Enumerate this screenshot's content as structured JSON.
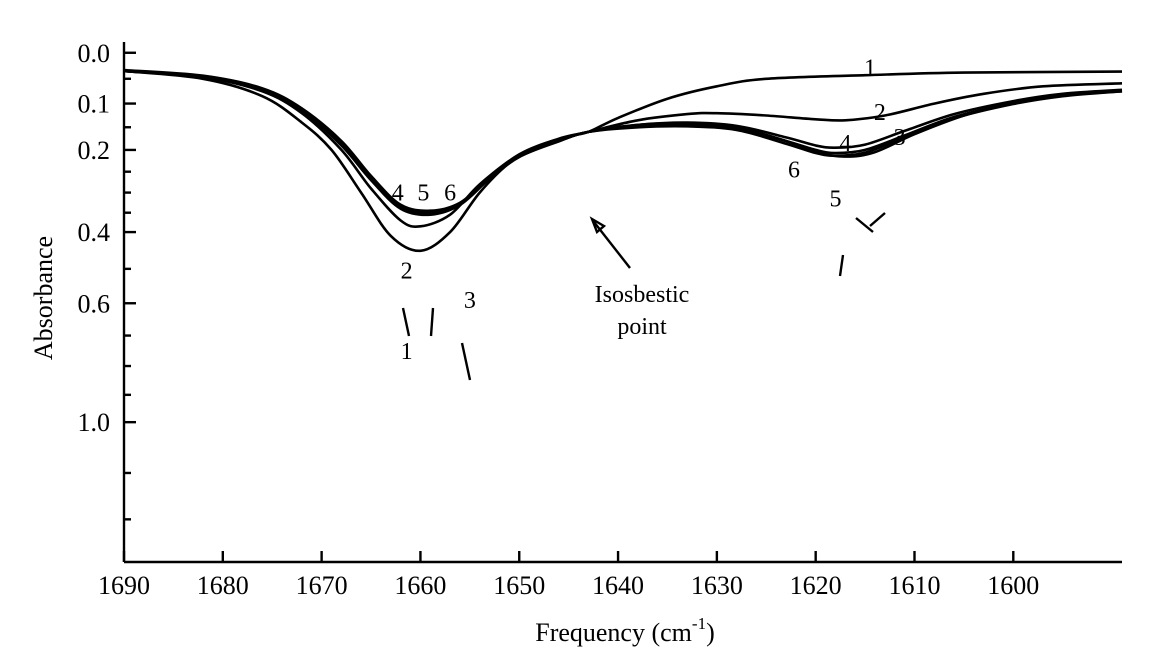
{
  "chart_data": {
    "type": "line",
    "title": "",
    "xlabel": "Frequency (cm",
    "xlabel_sup": "-1",
    "xlabel_close": ")",
    "ylabel": "Absorbance",
    "x_ticks": [
      1690,
      1680,
      1670,
      1660,
      1650,
      1640,
      1630,
      1620,
      1610,
      1600
    ],
    "x_range": [
      1690,
      1589
    ],
    "y_scale": "log10(1 + A)",
    "y_ticks": [
      "0.0",
      "0.1",
      "0.2",
      "0.4",
      "0.6",
      "1.0"
    ],
    "y_tick_values": [
      0.0,
      0.1,
      0.2,
      0.4,
      0.6,
      1.0
    ],
    "y_minor_tick_values": [
      0.05,
      0.15,
      0.25,
      0.3,
      0.35,
      0.5,
      0.7,
      0.8,
      0.9,
      1.2,
      1.4
    ],
    "y_range": [
      -0.02,
      1.6
    ],
    "grid": false,
    "annotation": {
      "text_line1": "Isosbestic",
      "text_line2": "point",
      "x": 1643,
      "y": 0.16
    },
    "series": [
      {
        "name": "1",
        "points": [
          [
            1690,
            0.035
          ],
          [
            1682,
            0.05
          ],
          [
            1676,
            0.085
          ],
          [
            1672,
            0.14
          ],
          [
            1669,
            0.2
          ],
          [
            1666,
            0.3
          ],
          [
            1663,
            0.41
          ],
          [
            1660,
            0.45
          ],
          [
            1657,
            0.4
          ],
          [
            1654,
            0.3
          ],
          [
            1651,
            0.23
          ],
          [
            1648,
            0.195
          ],
          [
            1645,
            0.17
          ],
          [
            1643,
            0.16
          ],
          [
            1640,
            0.13
          ],
          [
            1635,
            0.09
          ],
          [
            1630,
            0.065
          ],
          [
            1625,
            0.05
          ],
          [
            1615,
            0.043
          ],
          [
            1605,
            0.038
          ],
          [
            1589,
            0.036
          ]
        ]
      },
      {
        "name": "2",
        "points": [
          [
            1690,
            0.035
          ],
          [
            1682,
            0.047
          ],
          [
            1676,
            0.075
          ],
          [
            1672,
            0.12
          ],
          [
            1668,
            0.2
          ],
          [
            1665,
            0.29
          ],
          [
            1662,
            0.37
          ],
          [
            1660,
            0.385
          ],
          [
            1657,
            0.355
          ],
          [
            1654,
            0.28
          ],
          [
            1650,
            0.21
          ],
          [
            1646,
            0.175
          ],
          [
            1643,
            0.16
          ],
          [
            1638,
            0.135
          ],
          [
            1633,
            0.122
          ],
          [
            1630,
            0.12
          ],
          [
            1625,
            0.125
          ],
          [
            1620,
            0.133
          ],
          [
            1617,
            0.135
          ],
          [
            1613,
            0.125
          ],
          [
            1608,
            0.1
          ],
          [
            1603,
            0.08
          ],
          [
            1597,
            0.065
          ],
          [
            1589,
            0.059
          ]
        ]
      },
      {
        "name": "3",
        "points": [
          [
            1690,
            0.035
          ],
          [
            1682,
            0.046
          ],
          [
            1676,
            0.072
          ],
          [
            1672,
            0.115
          ],
          [
            1668,
            0.19
          ],
          [
            1665,
            0.27
          ],
          [
            1662,
            0.34
          ],
          [
            1659,
            0.355
          ],
          [
            1656,
            0.33
          ],
          [
            1653,
            0.265
          ],
          [
            1650,
            0.215
          ],
          [
            1646,
            0.18
          ],
          [
            1643,
            0.16
          ],
          [
            1638,
            0.145
          ],
          [
            1633,
            0.142
          ],
          [
            1628,
            0.15
          ],
          [
            1623,
            0.18
          ],
          [
            1620,
            0.205
          ],
          [
            1617,
            0.215
          ],
          [
            1614,
            0.205
          ],
          [
            1610,
            0.165
          ],
          [
            1605,
            0.125
          ],
          [
            1600,
            0.098
          ],
          [
            1595,
            0.083
          ],
          [
            1589,
            0.075
          ]
        ]
      },
      {
        "name": "4",
        "points": [
          [
            1690,
            0.033
          ],
          [
            1682,
            0.044
          ],
          [
            1676,
            0.069
          ],
          [
            1672,
            0.11
          ],
          [
            1668,
            0.18
          ],
          [
            1665,
            0.26
          ],
          [
            1662,
            0.33
          ],
          [
            1659,
            0.345
          ],
          [
            1656,
            0.325
          ],
          [
            1653,
            0.265
          ],
          [
            1650,
            0.215
          ],
          [
            1646,
            0.18
          ],
          [
            1643,
            0.16
          ],
          [
            1638,
            0.145
          ],
          [
            1633,
            0.14
          ],
          [
            1628,
            0.147
          ],
          [
            1623,
            0.172
          ],
          [
            1620,
            0.19
          ],
          [
            1618,
            0.195
          ],
          [
            1615,
            0.188
          ],
          [
            1611,
            0.158
          ],
          [
            1606,
            0.122
          ],
          [
            1600,
            0.095
          ],
          [
            1595,
            0.08
          ],
          [
            1589,
            0.072
          ]
        ]
      },
      {
        "name": "5",
        "points": [
          [
            1690,
            0.034
          ],
          [
            1682,
            0.045
          ],
          [
            1676,
            0.07
          ],
          [
            1672,
            0.112
          ],
          [
            1668,
            0.185
          ],
          [
            1665,
            0.265
          ],
          [
            1662,
            0.335
          ],
          [
            1659,
            0.35
          ],
          [
            1656,
            0.328
          ],
          [
            1653,
            0.266
          ],
          [
            1650,
            0.215
          ],
          [
            1646,
            0.18
          ],
          [
            1643,
            0.16
          ],
          [
            1638,
            0.148
          ],
          [
            1633,
            0.145
          ],
          [
            1628,
            0.152
          ],
          [
            1623,
            0.18
          ],
          [
            1620,
            0.2
          ],
          [
            1618,
            0.207
          ],
          [
            1615,
            0.2
          ],
          [
            1611,
            0.168
          ],
          [
            1606,
            0.128
          ],
          [
            1600,
            0.099
          ],
          [
            1595,
            0.083
          ],
          [
            1589,
            0.074
          ]
        ]
      },
      {
        "name": "6",
        "points": [
          [
            1690,
            0.034
          ],
          [
            1682,
            0.045
          ],
          [
            1676,
            0.071
          ],
          [
            1672,
            0.113
          ],
          [
            1668,
            0.186
          ],
          [
            1665,
            0.268
          ],
          [
            1662,
            0.338
          ],
          [
            1659,
            0.352
          ],
          [
            1656,
            0.33
          ],
          [
            1653,
            0.267
          ],
          [
            1650,
            0.216
          ],
          [
            1646,
            0.181
          ],
          [
            1643,
            0.16
          ],
          [
            1638,
            0.15
          ],
          [
            1633,
            0.148
          ],
          [
            1628,
            0.156
          ],
          [
            1623,
            0.186
          ],
          [
            1620,
            0.207
          ],
          [
            1618,
            0.213
          ],
          [
            1615,
            0.206
          ],
          [
            1611,
            0.172
          ],
          [
            1606,
            0.131
          ],
          [
            1600,
            0.101
          ],
          [
            1595,
            0.085
          ],
          [
            1589,
            0.075
          ]
        ]
      }
    ],
    "curve_labels": [
      {
        "text": "1",
        "x": 1614.5,
        "y": 0.028
      },
      {
        "text": "2",
        "x": 1613.5,
        "y": 0.118
      },
      {
        "text": "3",
        "x": 1611.5,
        "y": 0.171
      },
      {
        "text": "4",
        "x": 1617,
        "y": 0.184
      },
      {
        "text": "6",
        "x": 1622.2,
        "y": 0.245
      },
      {
        "text": "5",
        "x": 1618,
        "y": 0.315
      },
      {
        "text": "4",
        "x": 1662.3,
        "y": 0.3
      },
      {
        "text": "5",
        "x": 1659.7,
        "y": 0.3
      },
      {
        "text": "6",
        "x": 1657,
        "y": 0.3
      },
      {
        "text": "2",
        "x": 1661.4,
        "y": 0.505
      },
      {
        "text": "3",
        "x": 1655,
        "y": 0.59
      },
      {
        "text": "1",
        "x": 1661.4,
        "y": 0.75
      }
    ]
  }
}
